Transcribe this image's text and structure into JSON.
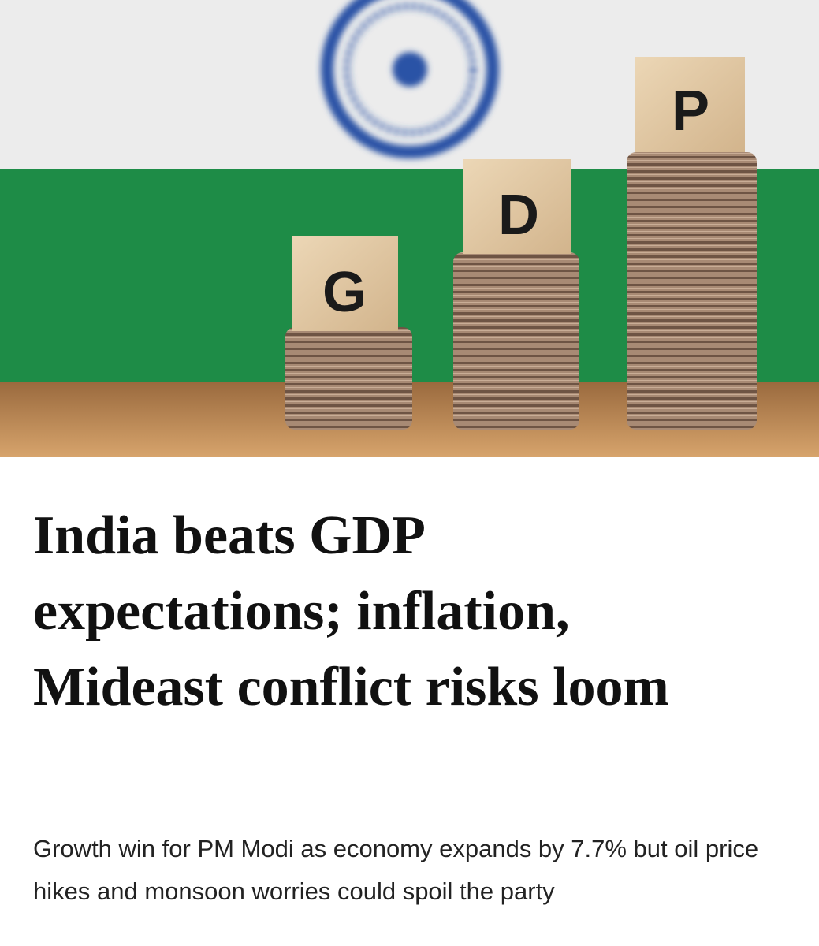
{
  "hero_image": {
    "blocks": [
      "G",
      "D",
      "P"
    ]
  },
  "article": {
    "title": "India beats GDP expectations; inflation, Mideast conflict risks loom",
    "subtitle": "Growth win for PM Modi as economy expands by 7.7% but oil price hikes and monsoon worries could spoil the party"
  }
}
